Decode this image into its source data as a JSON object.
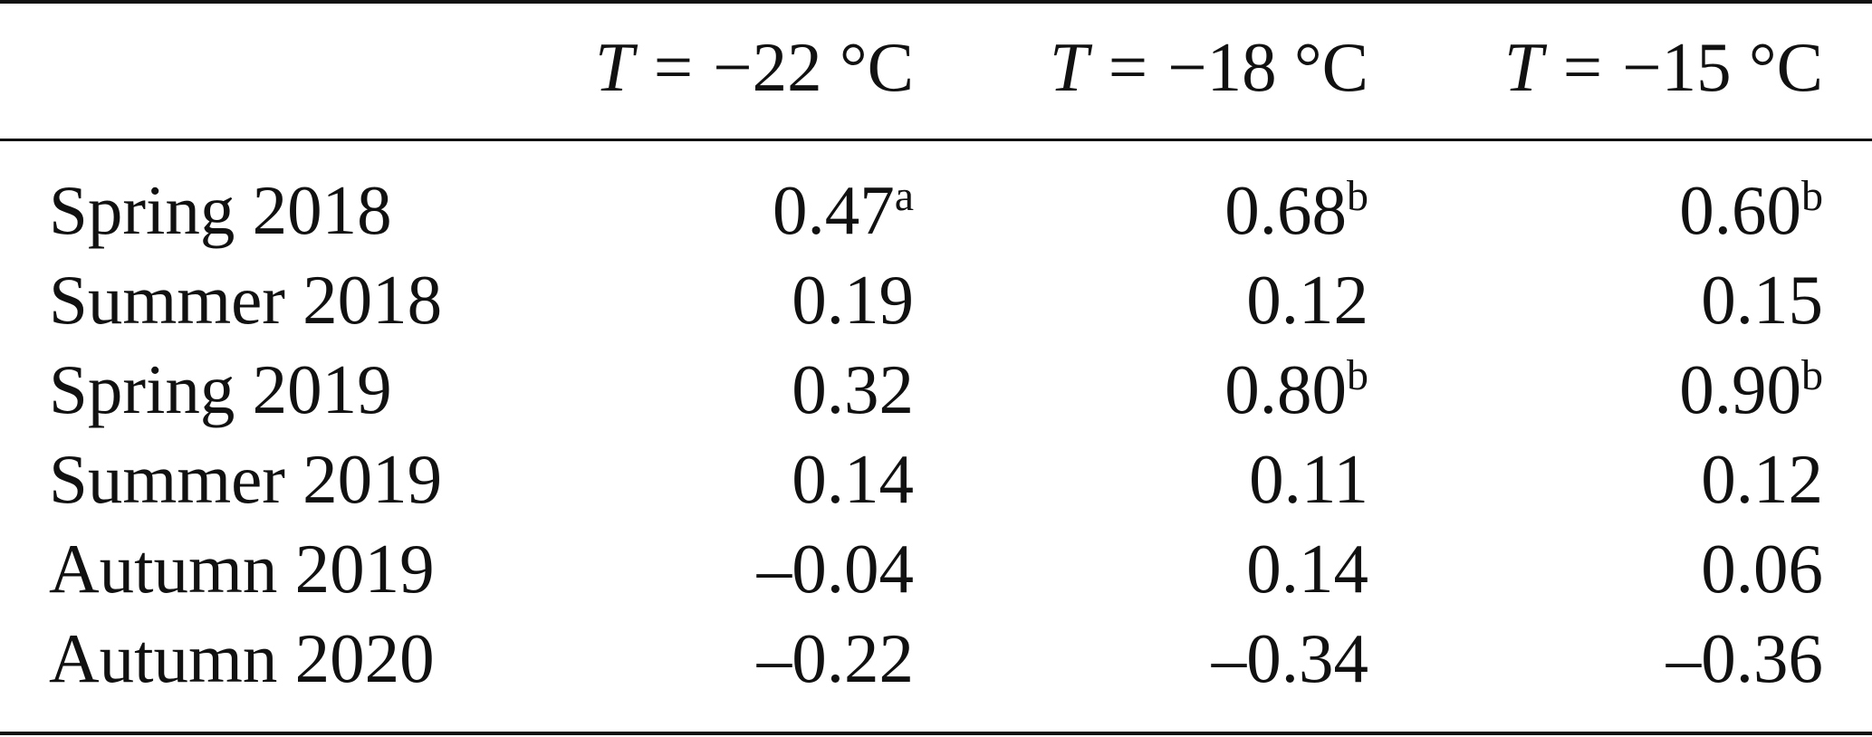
{
  "table": {
    "header": [
      {
        "var": "T",
        "op": "=",
        "value": "−22 °C"
      },
      {
        "var": "T",
        "op": "=",
        "value": "−18 °C"
      },
      {
        "var": "T",
        "op": "=",
        "value": "−15 °C"
      }
    ],
    "rows": [
      {
        "label": "Spring 2018",
        "cells": [
          {
            "value": "0.47",
            "note": "a"
          },
          {
            "value": "0.68",
            "note": "b"
          },
          {
            "value": "0.60",
            "note": "b"
          }
        ]
      },
      {
        "label": "Summer 2018",
        "cells": [
          {
            "value": "0.19",
            "note": ""
          },
          {
            "value": "0.12",
            "note": ""
          },
          {
            "value": "0.15",
            "note": ""
          }
        ]
      },
      {
        "label": "Spring 2019",
        "cells": [
          {
            "value": "0.32",
            "note": ""
          },
          {
            "value": "0.80",
            "note": "b"
          },
          {
            "value": "0.90",
            "note": "b"
          }
        ]
      },
      {
        "label": "Summer 2019",
        "cells": [
          {
            "value": "0.14",
            "note": ""
          },
          {
            "value": "0.11",
            "note": ""
          },
          {
            "value": "0.12",
            "note": ""
          }
        ]
      },
      {
        "label": "Autumn 2019",
        "cells": [
          {
            "value": "–0.04",
            "note": ""
          },
          {
            "value": "0.14",
            "note": ""
          },
          {
            "value": "0.06",
            "note": ""
          }
        ]
      },
      {
        "label": "Autumn 2020",
        "cells": [
          {
            "value": "–0.22",
            "note": ""
          },
          {
            "value": "–0.34",
            "note": ""
          },
          {
            "value": "–0.36",
            "note": ""
          }
        ]
      }
    ]
  }
}
